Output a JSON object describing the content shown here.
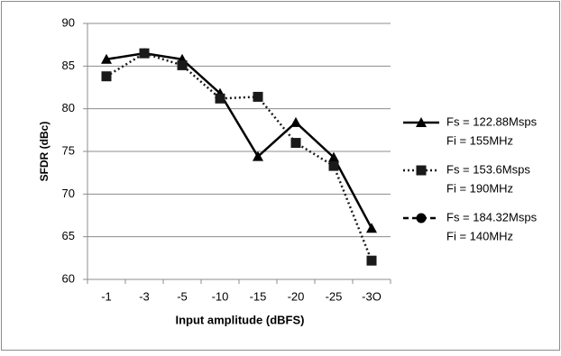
{
  "chart_data": {
    "type": "line",
    "y_label": "SFDR (dBc)",
    "x_label": "Input amplitude (dBFS)",
    "categories": [
      "-1",
      "-3",
      "-5",
      "-10",
      "-15",
      "-20",
      "-25",
      "-3O"
    ],
    "series": [
      {
        "name": "Fs = 122.88Msps",
        "name2": "Fi = 155MHz",
        "color": "#000000",
        "marker": "triangle",
        "dash": "solid",
        "values": [
          85.8,
          86.5,
          85.8,
          81.8,
          74.4,
          78.4,
          74.3,
          66.0
        ]
      },
      {
        "name": "Fs = 153.6Msps",
        "name2": "Fi = 190MHz",
        "color": "#1a1a1a",
        "marker": "square",
        "dash": "dotted",
        "values": [
          83.8,
          86.5,
          85.1,
          81.2,
          81.4,
          76.0,
          73.3,
          62.2
        ]
      },
      {
        "name": "Fs = 184.32Msps",
        "name2": "Fi = 140MHz",
        "color": "#000000",
        "marker": "circle",
        "dash": "dashed",
        "values": [
          null,
          null,
          null,
          null,
          null,
          null,
          null,
          null
        ]
      }
    ],
    "ylim": [
      60,
      90
    ],
    "yticks": [
      60,
      65,
      70,
      75,
      80,
      85,
      90
    ],
    "grid": true,
    "legend": "right"
  }
}
